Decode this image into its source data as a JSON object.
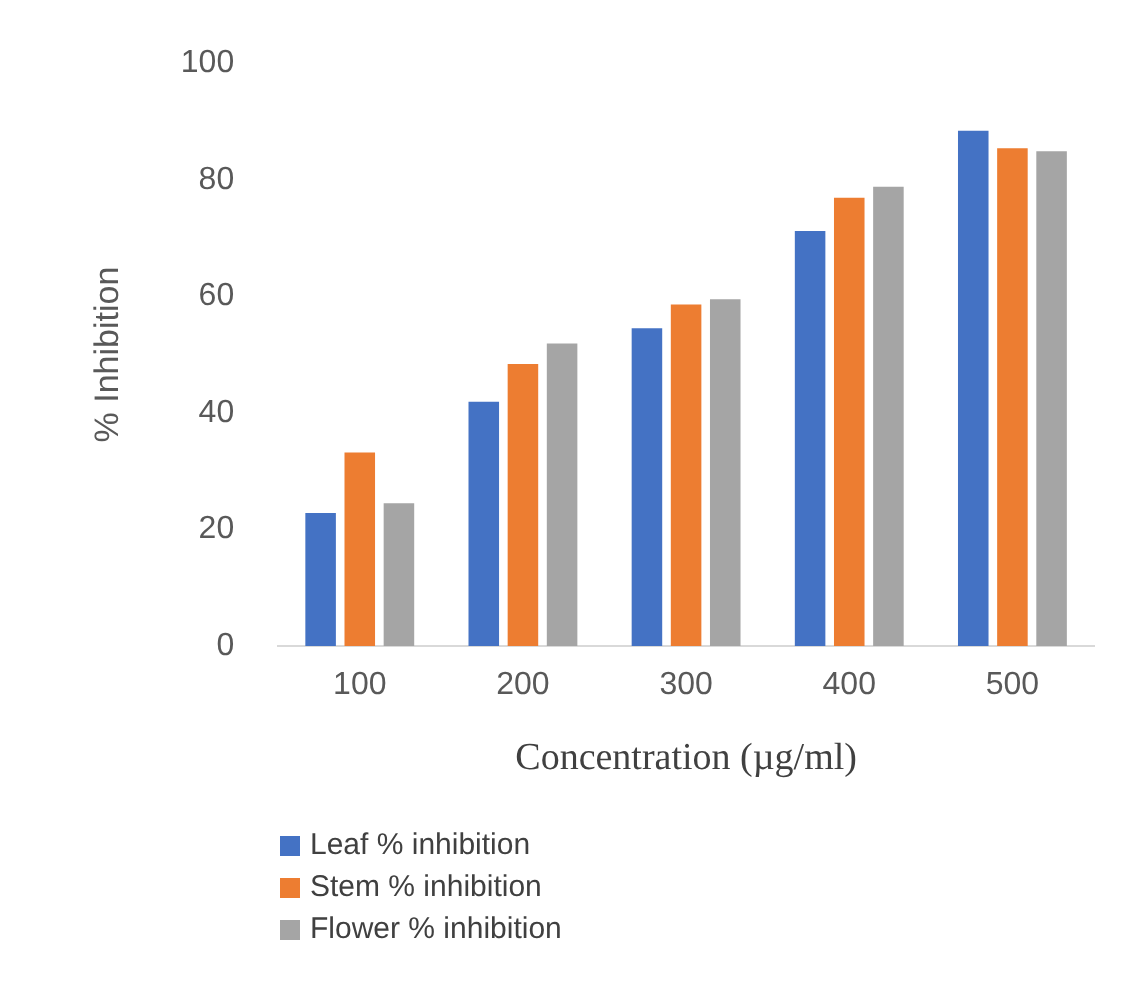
{
  "chart_data": {
    "type": "bar",
    "xlabel": "Concentration (µg/ml)",
    "ylabel": "% Inhibition",
    "categories": [
      "100",
      "200",
      "300",
      "400",
      "500"
    ],
    "series": [
      {
        "name": "Leaf % inhibition",
        "color": "#4472c4",
        "values": [
          22.8,
          41.9,
          54.5,
          71.2,
          88.4
        ]
      },
      {
        "name": "Stem % inhibition",
        "color": "#ed7d31",
        "values": [
          33.2,
          48.4,
          58.6,
          76.9,
          85.4
        ]
      },
      {
        "name": "Flower % inhibition",
        "color": "#a5a5a5",
        "values": [
          24.5,
          51.9,
          59.5,
          78.8,
          84.9
        ]
      }
    ],
    "ylim": [
      0,
      100
    ],
    "yticks": [
      0,
      20,
      40,
      60,
      80,
      100
    ],
    "grid": false,
    "legend": "bottom left"
  }
}
